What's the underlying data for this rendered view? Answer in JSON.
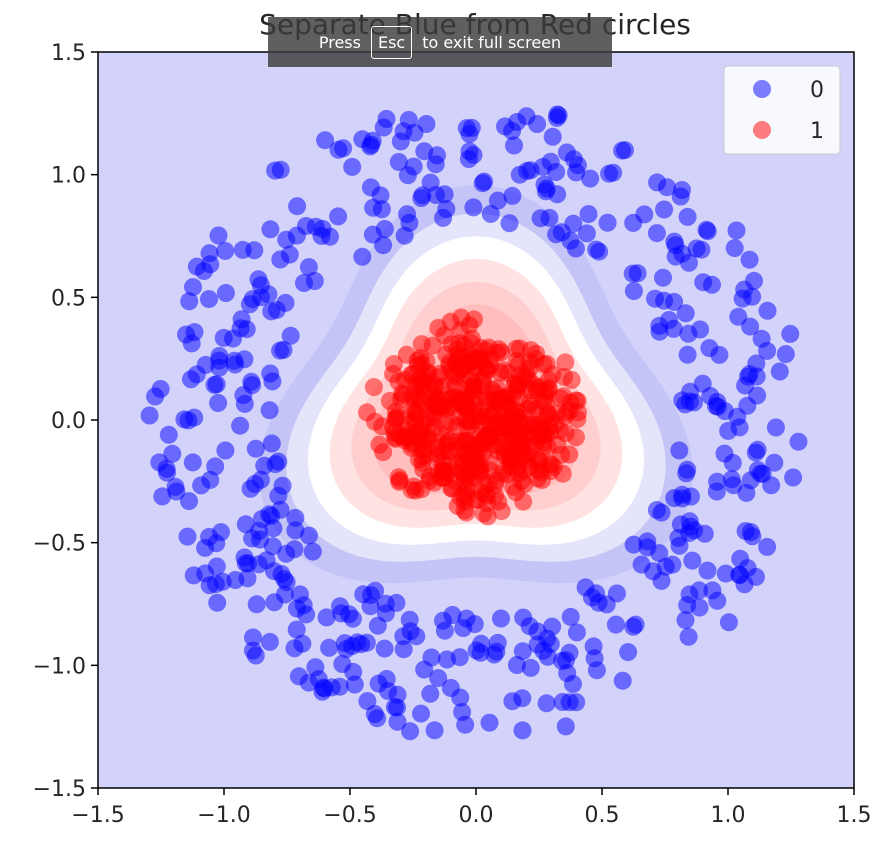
{
  "overlay": {
    "prefix": "Press",
    "key": "Esc",
    "suffix": "to exit full screen"
  },
  "chart_data": {
    "type": "scatter",
    "title": "Separate Blue from Red circles",
    "xlabel": "",
    "ylabel": "",
    "xlim": [
      -1.5,
      1.5
    ],
    "ylim": [
      -1.5,
      1.5
    ],
    "xticks": [
      "−1.5",
      "−1.0",
      "−0.5",
      "0.0",
      "0.5",
      "1.0",
      "1.5"
    ],
    "yticks": [
      "1.5",
      "1.0",
      "0.5",
      "0.0",
      "−0.5",
      "−1.0",
      "−1.5"
    ],
    "legend_position": "upper-right",
    "background_region_color": "#d2d2fa",
    "decision_region_color": "#ff0000",
    "series": [
      {
        "name": "0",
        "color": "#0000ff",
        "shape": "outer ring",
        "radius_range": [
          0.8,
          1.3
        ],
        "approx_count": 500
      },
      {
        "name": "1",
        "color": "#ff0000",
        "shape": "inner disc",
        "radius_range": [
          0.0,
          0.45
        ],
        "approx_count": 500
      }
    ]
  }
}
